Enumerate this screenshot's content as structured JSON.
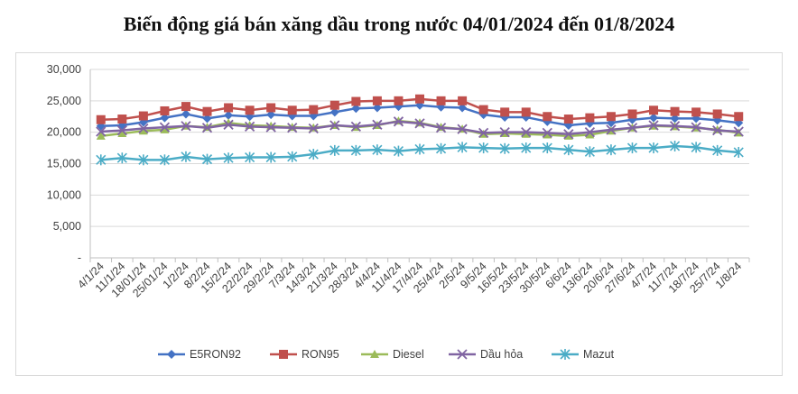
{
  "chart_data": {
    "type": "line",
    "title": "Biến động giá bán xăng dầu trong nước 04/01/2024 đến 01/8/2024",
    "xlabel": "",
    "ylabel": "",
    "ylim": [
      0,
      30000
    ],
    "yticks": [
      "-",
      "5,000",
      "10,000",
      "15,000",
      "20,000",
      "25,000",
      "30,000"
    ],
    "grid": true,
    "legend_position": "bottom",
    "categories": [
      "4/1/24",
      "11/1/24",
      "18/01/24",
      "25/01/24",
      "1/2/24",
      "8/2/24",
      "15/2/24",
      "22/2/24",
      "29/2/24",
      "7/3/24",
      "14/3/24",
      "21/3/24",
      "28/3/24",
      "4/4/24",
      "11/4/24",
      "17/4/24",
      "25/4/24",
      "2/5/24",
      "9/5/24",
      "16/5/24",
      "23/5/24",
      "30/5/24",
      "6/6/24",
      "13/6/24",
      "20/6/24",
      "27/6/24",
      "4/7/24",
      "11/7/24",
      "18/7/24",
      "25/7/24",
      "1/8/24"
    ],
    "series": [
      {
        "name": "E5RON92",
        "color": "#4472c4",
        "marker": "diamond",
        "values": [
          21000,
          21100,
          21600,
          22300,
          22900,
          22200,
          22700,
          22500,
          22800,
          22600,
          22600,
          23200,
          23800,
          23900,
          24100,
          24300,
          24000,
          23900,
          22800,
          22400,
          22400,
          21700,
          21100,
          21400,
          21500,
          22000,
          22300,
          22200,
          22200,
          21900,
          21500
        ]
      },
      {
        "name": "RON95",
        "color": "#c0504d",
        "marker": "square",
        "values": [
          22000,
          22100,
          22600,
          23400,
          24100,
          23300,
          23900,
          23500,
          23900,
          23500,
          23600,
          24300,
          24900,
          25000,
          25000,
          25300,
          25000,
          25000,
          23600,
          23200,
          23200,
          22500,
          22100,
          22300,
          22500,
          22900,
          23500,
          23300,
          23200,
          22900,
          22500
        ]
      },
      {
        "name": "Diesel",
        "color": "#9bbb59",
        "marker": "triangle",
        "values": [
          19400,
          19800,
          20200,
          20400,
          21000,
          20800,
          21500,
          21100,
          21000,
          20800,
          20700,
          21100,
          20800,
          21100,
          21800,
          21500,
          20800,
          20500,
          19700,
          19800,
          19700,
          19600,
          19400,
          19600,
          20200,
          20700,
          21000,
          20900,
          20700,
          20400,
          19900
        ]
      },
      {
        "name": "Dầu hỏa",
        "color": "#8064a2",
        "marker": "x",
        "values": [
          20100,
          20300,
          20600,
          20800,
          21000,
          20700,
          21200,
          20900,
          20800,
          20700,
          20600,
          21100,
          20900,
          21200,
          21700,
          21400,
          20700,
          20500,
          19900,
          20000,
          20000,
          19900,
          19700,
          20000,
          20400,
          20700,
          21100,
          21000,
          20800,
          20300,
          20100
        ]
      },
      {
        "name": "Mazut",
        "color": "#4bacc6",
        "marker": "star",
        "values": [
          15600,
          15900,
          15600,
          15600,
          16100,
          15700,
          15900,
          16000,
          16000,
          16100,
          16500,
          17100,
          17100,
          17200,
          17000,
          17300,
          17400,
          17600,
          17500,
          17400,
          17500,
          17500,
          17200,
          16900,
          17200,
          17500,
          17500,
          17800,
          17600,
          17100,
          16800
        ]
      }
    ]
  }
}
